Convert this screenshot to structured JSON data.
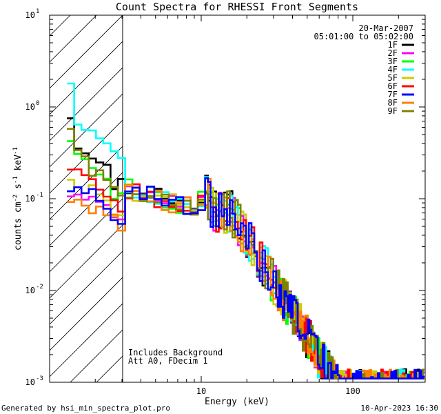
{
  "chart_data": {
    "type": "line",
    "title": "Count Spectra for RHESSI Front Segments",
    "xlabel": "Energy (keV)",
    "ylabel": {
      "base": "counts cm",
      "exp1": "-2",
      "mid": " s",
      "exp2": "-1",
      "tail": " keV",
      "exp3": "-1"
    },
    "xscale": "log",
    "yscale": "log",
    "xlim": [
      1,
      300
    ],
    "ylim": [
      0.001,
      10
    ],
    "x_ticks": [
      {
        "value": 10,
        "label": "10"
      },
      {
        "value": 100,
        "label": "100"
      }
    ],
    "y_ticks": [
      {
        "value": 0.001,
        "label": "10",
        "exp": "-3"
      },
      {
        "value": 0.01,
        "label": "10",
        "exp": "-2"
      },
      {
        "value": 0.1,
        "label": "10",
        "exp": "-1"
      },
      {
        "value": 1,
        "label": "10",
        "exp": "0"
      },
      {
        "value": 10,
        "label": "10",
        "exp": "1"
      }
    ],
    "hatched_region": [
      1,
      3
    ],
    "date": "20-Mar-2007",
    "time_range": "05:01:00 to 05:02:00",
    "annotations": [
      "Includes Background",
      "Att A0, FDecim 1"
    ],
    "footer_left": "Generated by hsi_min_spectra_plot.pro",
    "footer_right": "10-Apr-2023 16:30",
    "series": [
      {
        "name": "1F",
        "color": "#000000",
        "start_value": 0.8
      },
      {
        "name": "2F",
        "color": "#ff00ff",
        "start_value": 0.3
      },
      {
        "name": "3F",
        "color": "#00ff00",
        "start_value": 0.6
      },
      {
        "name": "4F",
        "color": "#00ffff",
        "start_value": 1.5
      },
      {
        "name": "5F",
        "color": "#cccc00",
        "start_value": 0.37
      },
      {
        "name": "6F",
        "color": "#ff0000",
        "start_value": 0.42
      },
      {
        "name": "7F",
        "color": "#0000ff",
        "start_value": 0.32
      },
      {
        "name": "8F",
        "color": "#ff8000",
        "start_value": 0.28
      },
      {
        "name": "9F",
        "color": "#808000",
        "start_value": 0.7
      }
    ]
  }
}
